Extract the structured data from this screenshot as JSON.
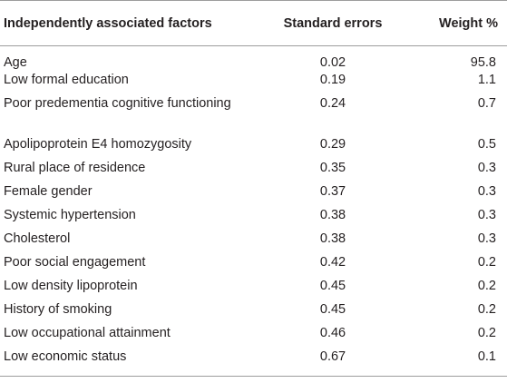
{
  "table": {
    "headers": {
      "factor": "Independently associated factors",
      "se": "Standard errors",
      "weight": "Weight %"
    },
    "rows": [
      {
        "factor": "Age",
        "se": "0.02",
        "weight": "95.8"
      },
      {
        "factor": "Low formal education",
        "se": "0.19",
        "weight": "1.1"
      },
      {
        "factor": "Poor predementia cognitive functioning",
        "se": "0.24",
        "weight": "0.7"
      },
      {
        "factor": "Apolipoprotein E4 homozygosity",
        "se": "0.29",
        "weight": "0.5"
      },
      {
        "factor": "Rural place of residence",
        "se": "0.35",
        "weight": "0.3"
      },
      {
        "factor": "Female gender",
        "se": "0.37",
        "weight": "0.3"
      },
      {
        "factor": "Systemic hypertension",
        "se": "0.38",
        "weight": "0.3"
      },
      {
        "factor": "Cholesterol",
        "se": "0.38",
        "weight": "0.3"
      },
      {
        "factor": "Poor social engagement",
        "se": "0.42",
        "weight": "0.2"
      },
      {
        "factor": "Low density lipoprotein",
        "se": "0.45",
        "weight": "0.2"
      },
      {
        "factor": "History of smoking",
        "se": "0.45",
        "weight": "0.2"
      },
      {
        "factor": "Low occupational attainment",
        "se": "0.46",
        "weight": "0.2"
      },
      {
        "factor": "Low economic status",
        "se": "0.67",
        "weight": "0.1"
      }
    ]
  }
}
